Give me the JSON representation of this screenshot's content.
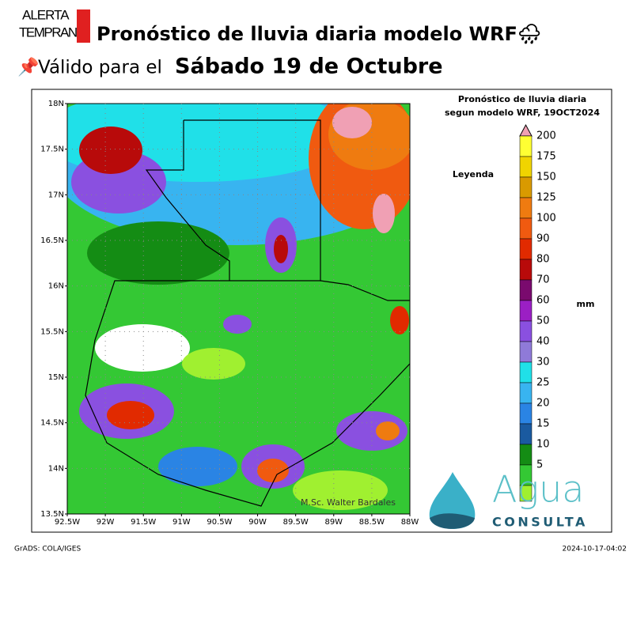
{
  "header": {
    "logo_top": "ALERTA",
    "logo_bottom": "TEMPRANA",
    "title": "Pronóstico de lluvia diaria modelo WRF🌧",
    "subtitle_prefix": "Válido para el",
    "subtitle_date": "Sábado 19 de Octubre"
  },
  "map": {
    "lat_ticks": [
      "18N",
      "17.5N",
      "17N",
      "16.5N",
      "16N",
      "15.5N",
      "15N",
      "14.5N",
      "14N",
      "13.5N"
    ],
    "lon_ticks": [
      "92.5W",
      "92W",
      "91.5W",
      "91W",
      "90.5W",
      "90W",
      "89.5W",
      "89W",
      "88.5W",
      "88W"
    ],
    "credit": "M.Sc. Walter Bardales"
  },
  "legend": {
    "title_1": "Pronóstico de lluvia diaria",
    "title_2": "segun modelo WRF,  19OCT2024",
    "heading": "Leyenda",
    "unit": "mm",
    "levels": [
      {
        "label": "200",
        "color": "#ffff33"
      },
      {
        "label": "175",
        "color": "#f0d400"
      },
      {
        "label": "150",
        "color": "#d99a00"
      },
      {
        "label": "125",
        "color": "#ef7b10"
      },
      {
        "label": "100",
        "color": "#f05a10"
      },
      {
        "label": "90",
        "color": "#e12a00"
      },
      {
        "label": "80",
        "color": "#b80a0a"
      },
      {
        "label": "70",
        "color": "#7a0a6e"
      },
      {
        "label": "60",
        "color": "#9b1fc4"
      },
      {
        "label": "50",
        "color": "#8a50e0"
      },
      {
        "label": "40",
        "color": "#8f7ad8"
      },
      {
        "label": "30",
        "color": "#20e0e8"
      },
      {
        "label": "25",
        "color": "#38b4f0"
      },
      {
        "label": "20",
        "color": "#2a84e4"
      },
      {
        "label": "15",
        "color": "#1a5aa0"
      },
      {
        "label": "10",
        "color": "#148c14"
      },
      {
        "label": "5",
        "color": "#34c834"
      }
    ],
    "top_color": "#f0a0b4",
    "bottom_color": "#a0f030"
  },
  "footer": {
    "left": "GrADS: COLA/IGES",
    "right": "2024-10-17-04:02",
    "brand_1": "Agua",
    "brand_2": "CONSULTA"
  }
}
